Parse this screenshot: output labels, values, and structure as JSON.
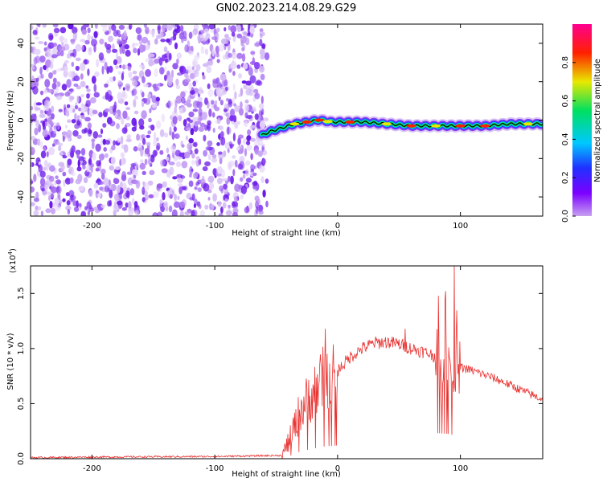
{
  "title": "GN02.2023.214.08.29.G29",
  "colors": {
    "snr_line": "#e8312f",
    "noise_points": "#7b2ff0",
    "colormap": [
      "#c8a0f0",
      "#7b00ff",
      "#2030ff",
      "#00c8ff",
      "#00e060",
      "#e8e800",
      "#ff2000",
      "#ff0090"
    ]
  },
  "chart_data": [
    {
      "type": "heatmap",
      "xlabel": "Height of straight line (km)",
      "ylabel": "Frequency (Hz)",
      "xlim": [
        -250,
        167
      ],
      "ylim": [
        -50,
        50
      ],
      "xticks": [
        -200,
        -100,
        0,
        100
      ],
      "yticks": [
        -40,
        -20,
        0,
        20,
        40
      ],
      "noise_region_x": [
        -250,
        -60
      ],
      "signal_ridge": {
        "x": [
          -62,
          -55,
          -45,
          -35,
          -25,
          -15,
          -5,
          0,
          20,
          40,
          60,
          80,
          100,
          120,
          140,
          167
        ],
        "freq": [
          -8,
          -6,
          -4,
          -2,
          -1,
          0,
          -1,
          -1,
          -1,
          -2,
          -3,
          -3,
          -3,
          -3,
          -2,
          -2
        ]
      },
      "colorbar": {
        "label": "Normalized spectral amplitude",
        "range": [
          0.0,
          1.0
        ],
        "ticks": [
          "0.0",
          "0.2",
          "0.4",
          "0.6",
          "0.8"
        ]
      }
    },
    {
      "type": "line",
      "xlabel": "Height of straight line (km)",
      "ylabel": "SNR (10 * v/v)",
      "multiplier": "(x10",
      "multiplier_exp": "4",
      "multiplier_close": ")",
      "xlim": [
        -250,
        167
      ],
      "ylim": [
        0,
        1.75
      ],
      "xticks": [
        -200,
        -100,
        0,
        100
      ],
      "yticks": [
        "0.0",
        "0.5",
        "1.0",
        "1.5"
      ],
      "envelope": {
        "x": [
          -250,
          -200,
          -100,
          -45,
          -38,
          -30,
          -20,
          -10,
          0,
          10,
          20,
          30,
          40,
          50,
          60,
          70,
          80,
          90,
          95,
          100,
          110,
          120,
          130,
          140,
          150,
          160,
          167
        ],
        "y": [
          0.01,
          0.015,
          0.02,
          0.03,
          0.2,
          0.45,
          0.6,
          0.75,
          0.8,
          0.92,
          1.0,
          1.05,
          1.06,
          1.04,
          1.0,
          0.97,
          0.93,
          0.9,
          0.85,
          0.83,
          0.8,
          0.76,
          0.72,
          0.67,
          0.62,
          0.57,
          0.54
        ]
      },
      "peaks": [
        {
          "x": -10,
          "y": 1.18
        },
        {
          "x": 55,
          "y": 1.18
        },
        {
          "x": 88,
          "y": 1.52
        },
        {
          "x": 95,
          "y": 1.75
        }
      ]
    }
  ]
}
